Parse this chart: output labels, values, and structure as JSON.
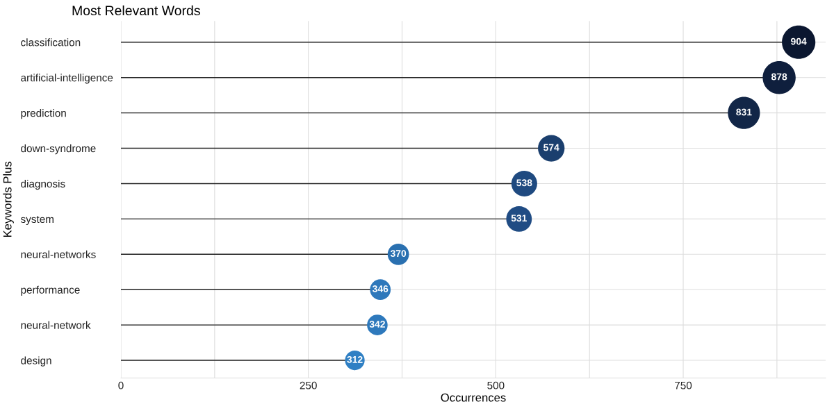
{
  "chart_data": {
    "type": "lollipop",
    "orientation": "horizontal",
    "title": "Most Relevant Words",
    "xlabel": "Occurrences",
    "ylabel": "Keywords Plus",
    "categories": [
      "classification",
      "artificial-intelligence",
      "prediction",
      "down-syndrome",
      "diagnosis",
      "system",
      "neural-networks",
      "performance",
      "neural-network",
      "design"
    ],
    "values": [
      904,
      878,
      831,
      574,
      538,
      531,
      370,
      346,
      342,
      312
    ],
    "colors": [
      "#0b1730",
      "#0f1f3d",
      "#122647",
      "#1b3f6e",
      "#1f4a80",
      "#204c84",
      "#2a70b0",
      "#2e78bb",
      "#2e79bc",
      "#3080c4"
    ],
    "sizes": [
      1,
      0.971,
      0.919,
      0.635,
      0.595,
      0.587,
      0.409,
      0.383,
      0.378,
      0.345
    ],
    "xlim": [
      0,
      940
    ],
    "xticks": [
      0,
      {
        "value": 125,
        "label": null
      },
      250,
      {
        "value": 375,
        "label": null
      },
      500,
      {
        "value": 625,
        "label": null
      },
      750,
      {
        "value": 875,
        "label": null
      }
    ],
    "grid": true,
    "data_labels": true
  }
}
